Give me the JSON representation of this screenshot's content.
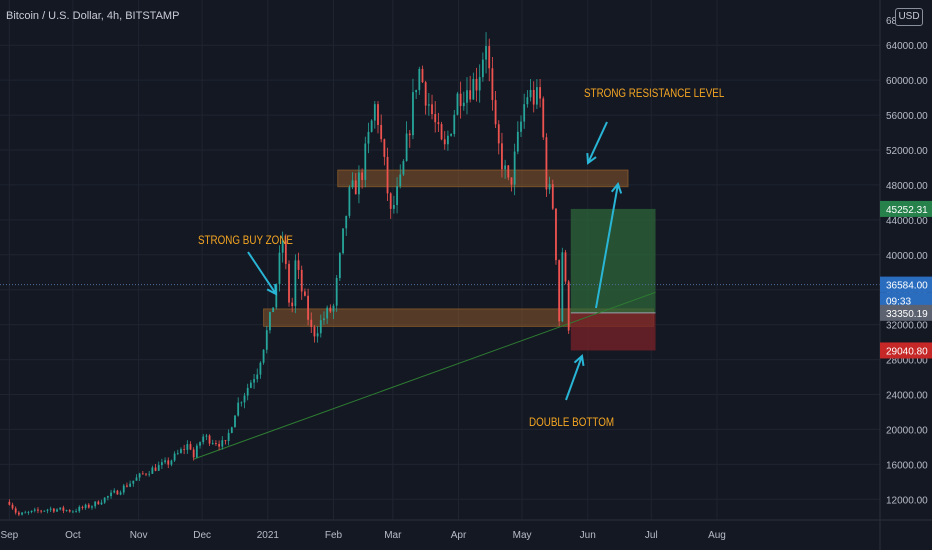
{
  "header": {
    "symbol_title": "Bitcoin / U.S. Dollar, 4h, BITSTAMP",
    "currency_button": "USD"
  },
  "colors": {
    "background": "#141823",
    "grid": "#1f2430",
    "axis_text": "#b8bcc8",
    "up_candle": "#26a69a",
    "down_candle": "#ef5350",
    "annotation_text": "#f5a623",
    "arrow": "#29b6d6",
    "zone_fill": "#8a5a2b",
    "target_fill": "#2e6b3a",
    "stop_fill": "#7a2228",
    "trendline": "#2e7d32",
    "price_badge_target": "#26814a",
    "price_badge_current": "#2a6dbf",
    "price_badge_entry": "#5d6270",
    "price_badge_stop": "#c62828"
  },
  "chart_data": {
    "type": "candlestick",
    "title": "Bitcoin / U.S. Dollar, 4h, BITSTAMP",
    "x_ticks": [
      "Sep",
      "Oct",
      "Nov",
      "Dec",
      "2021",
      "Feb",
      "Mar",
      "Apr",
      "May",
      "Jun",
      "Jul",
      "Aug"
    ],
    "y_ticks": [
      "12000.00",
      "16000.00",
      "20000.00",
      "24000.00",
      "28000.00",
      "32000.00",
      "36000.00",
      "40000.00",
      "44000.00",
      "48000.00",
      "52000.00",
      "56000.00",
      "60000.00",
      "64000.00"
    ],
    "y_top_label": "68",
    "y_axis_range": [
      9000,
      68000
    ],
    "price_path": [
      [
        "2020-09-01",
        11700
      ],
      [
        "2020-09-05",
        10200
      ],
      [
        "2020-09-20",
        10900
      ],
      [
        "2020-10-01",
        10700
      ],
      [
        "2020-10-10",
        11300
      ],
      [
        "2020-10-22",
        12900
      ],
      [
        "2020-11-05",
        15200
      ],
      [
        "2020-11-15",
        16200
      ],
      [
        "2020-11-25",
        18400
      ],
      [
        "2020-11-27",
        16800
      ],
      [
        "2020-12-01",
        19200
      ],
      [
        "2020-12-12",
        18200
      ],
      [
        "2020-12-17",
        22500
      ],
      [
        "2020-12-27",
        26800
      ],
      [
        "2021-01-03",
        33500
      ],
      [
        "2021-01-08",
        41800
      ],
      [
        "2021-01-12",
        32500
      ],
      [
        "2021-01-14",
        39000
      ],
      [
        "2021-01-22",
        30800
      ],
      [
        "2021-01-28",
        33000
      ],
      [
        "2021-02-01",
        34000
      ],
      [
        "2021-02-08",
        46500
      ],
      [
        "2021-02-14",
        49000
      ],
      [
        "2021-02-21",
        57500
      ],
      [
        "2021-02-28",
        44500
      ],
      [
        "2021-03-05",
        48500
      ],
      [
        "2021-03-13",
        61500
      ],
      [
        "2021-03-25",
        51500
      ],
      [
        "2021-04-01",
        58500
      ],
      [
        "2021-04-10",
        60000
      ],
      [
        "2021-04-14",
        64800
      ],
      [
        "2021-04-18",
        54000
      ],
      [
        "2021-04-25",
        47500
      ],
      [
        "2021-05-03",
        58500
      ],
      [
        "2021-05-10",
        57500
      ],
      [
        "2021-05-12",
        49000
      ],
      [
        "2021-05-16",
        45200
      ],
      [
        "2021-05-19",
        30100
      ],
      [
        "2021-05-20",
        40500
      ],
      [
        "2021-05-23",
        32000
      ],
      [
        "2021-05-24",
        36584
      ]
    ],
    "horizontal_zones": [
      {
        "label": "resistance",
        "y_range": [
          47800,
          49700
        ],
        "x_range": [
          "2021-02-03",
          "2021-06-20"
        ]
      },
      {
        "label": "buy zone",
        "y_range": [
          31800,
          33800
        ],
        "x_range": [
          "2020-12-30",
          "2021-07-02"
        ]
      }
    ],
    "position": {
      "entry": 33350.19,
      "target": 45252.31,
      "stop": 29040.8,
      "x_range": [
        "2021-05-24",
        "2021-07-03"
      ]
    },
    "trendline": {
      "from": [
        "2020-11-27",
        16600
      ],
      "to": [
        "2021-07-03",
        35700
      ]
    },
    "annotations": [
      {
        "text": "STRONG RESISTANCE LEVEL",
        "x": "2021-06-01",
        "y": 63000
      },
      {
        "text": "STRONG BUY ZONE",
        "x": "2020-12-22",
        "y": 41600
      },
      {
        "text": "DOUBLE BOTTOM",
        "x": "2021-05-17",
        "y": 17400
      }
    ],
    "price_labels": [
      {
        "text": "45252.31",
        "role": "target"
      },
      {
        "text": "36584.00",
        "role": "current"
      },
      {
        "text": "09:33",
        "role": "countdown"
      },
      {
        "text": "33350.19",
        "role": "entry"
      },
      {
        "text": "29040.80",
        "role": "stop"
      }
    ],
    "current_price": 36584.0,
    "grid": true
  }
}
